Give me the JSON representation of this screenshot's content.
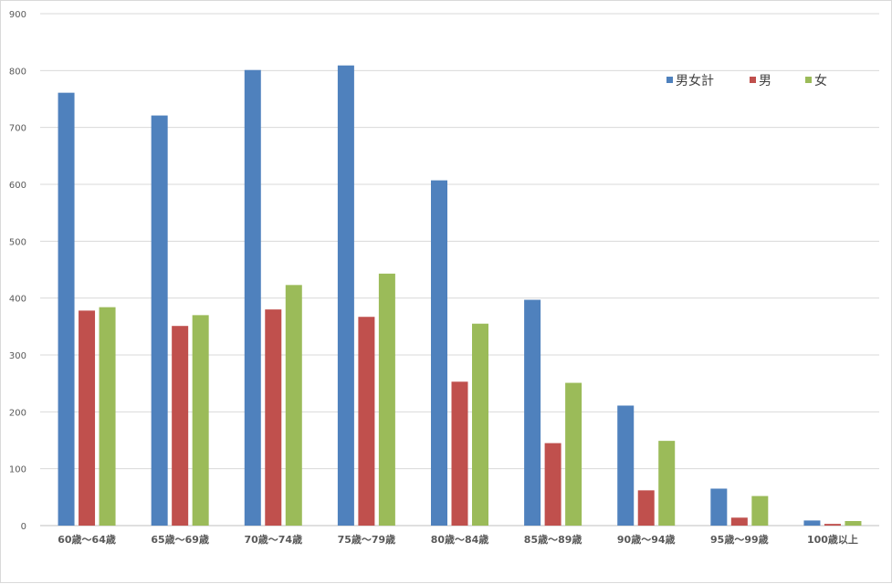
{
  "chart_data": {
    "type": "bar",
    "categories": [
      "60歳～64歳",
      "65歳～69歳",
      "70歳～74歳",
      "75歳～79歳",
      "80歳～84歳",
      "85歳～89歳",
      "90歳～94歳",
      "95歳～99歳",
      "100歳以上"
    ],
    "series": [
      {
        "name": "男女計",
        "color": "#4f81bd",
        "values": [
          761,
          721,
          801,
          809,
          607,
          397,
          211,
          65,
          9
        ]
      },
      {
        "name": "男",
        "color": "#c0504d",
        "values": [
          378,
          351,
          380,
          367,
          253,
          145,
          62,
          14,
          3
        ]
      },
      {
        "name": "女",
        "color": "#9bbb59",
        "values": [
          384,
          370,
          423,
          443,
          355,
          251,
          149,
          52,
          8
        ]
      }
    ],
    "y_ticks": [
      "0",
      "100",
      "200",
      "300",
      "400",
      "500",
      "600",
      "700",
      "800",
      "900"
    ],
    "ylim": [
      0,
      900
    ],
    "grid": true,
    "legend_position": "top-right",
    "title": "",
    "xlabel": "",
    "ylabel": ""
  }
}
